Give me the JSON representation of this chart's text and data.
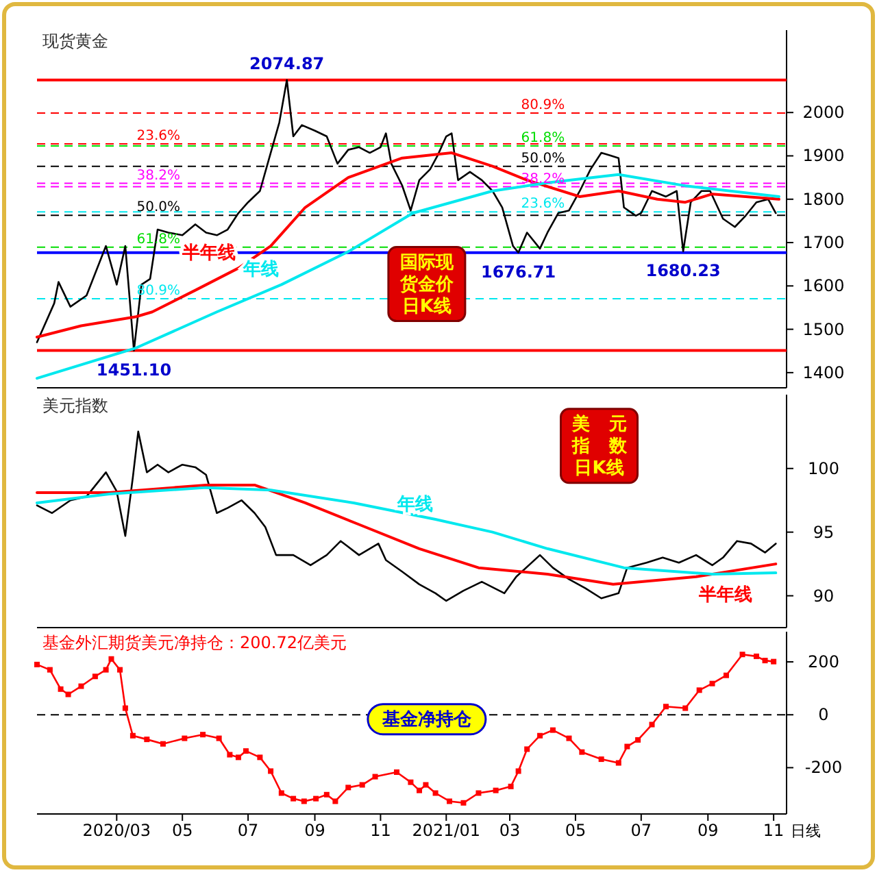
{
  "chart_data": [
    {
      "type": "line",
      "title": "现货黄金",
      "xlim": [
        "2019-12-18",
        "2021-11-13"
      ],
      "ylim": [
        1365,
        2190
      ],
      "yticks": [
        1400,
        1500,
        1600,
        1700,
        1800,
        1900,
        2000
      ],
      "tick_labels": "y",
      "series": [
        {
          "color": "#000000",
          "x": [
            "2019-12-18",
            "2020-01-03",
            "2020-01-07",
            "2020-01-18",
            "2020-02-02",
            "2020-02-20",
            "2020-03-01",
            "2020-03-09",
            "2020-03-17",
            "2020-03-24",
            "2020-04-01",
            "2020-04-08",
            "2020-04-18",
            "2020-05-01",
            "2020-05-13",
            "2020-05-23",
            "2020-06-02",
            "2020-06-12",
            "2020-06-22",
            "2020-07-01",
            "2020-07-12",
            "2020-07-22",
            "2020-07-30",
            "2020-08-06",
            "2020-08-12",
            "2020-08-20",
            "2020-09-01",
            "2020-09-12",
            "2020-09-22",
            "2020-10-02",
            "2020-10-12",
            "2020-10-22",
            "2020-11-01",
            "2020-11-06",
            "2020-11-11",
            "2020-11-21",
            "2020-11-29",
            "2020-12-07",
            "2020-12-17",
            "2020-12-24",
            "2021-01-01",
            "2021-01-06",
            "2021-01-12",
            "2021-01-23",
            "2021-02-03",
            "2021-02-13",
            "2021-02-22",
            "2021-03-04",
            "2021-03-09",
            "2021-03-17",
            "2021-03-29",
            "2021-04-05",
            "2021-04-15",
            "2021-04-25",
            "2021-05-05",
            "2021-05-15",
            "2021-05-25",
            "2021-06-02",
            "2021-06-10",
            "2021-06-15",
            "2021-06-26",
            "2021-07-01",
            "2021-07-11",
            "2021-07-24",
            "2021-08-03",
            "2021-08-09",
            "2021-08-16",
            "2021-08-26",
            "2021-09-03",
            "2021-09-15",
            "2021-09-26",
            "2021-10-06",
            "2021-10-16",
            "2021-10-27",
            "2021-11-03"
          ],
          "values": [
            1470,
            1560,
            1609,
            1552,
            1578,
            1692,
            1603,
            1692,
            1451,
            1603,
            1616,
            1730,
            1723,
            1717,
            1742,
            1723,
            1717,
            1730,
            1768,
            1793,
            1819,
            1907,
            1977,
            2075,
            1945,
            1971,
            1958,
            1945,
            1882,
            1914,
            1920,
            1907,
            1920,
            1952,
            1882,
            1832,
            1774,
            1844,
            1869,
            1901,
            1945,
            1952,
            1844,
            1863,
            1844,
            1819,
            1781,
            1692,
            1677,
            1723,
            1686,
            1723,
            1768,
            1774,
            1819,
            1869,
            1907,
            1901,
            1895,
            1781,
            1762,
            1768,
            1819,
            1806,
            1819,
            1680,
            1793,
            1819,
            1819,
            1755,
            1736,
            1762,
            1793,
            1800,
            1768
          ]
        },
        {
          "name": "半年线",
          "color": "#ff0000",
          "x": [
            "2019-12-18",
            "2020-01-28",
            "2020-03-19",
            "2020-04-03",
            "2020-05-13",
            "2020-06-22",
            "2020-07-22",
            "2020-08-23",
            "2020-10-02",
            "2020-11-21",
            "2021-01-06",
            "2021-02-13",
            "2021-03-17",
            "2021-05-05",
            "2021-06-10",
            "2021-07-16",
            "2021-08-11",
            "2021-09-05",
            "2021-11-06"
          ],
          "values": [
            1482,
            1508,
            1529,
            1540,
            1590,
            1641,
            1692,
            1781,
            1850,
            1895,
            1907,
            1876,
            1844,
            1806,
            1819,
            1800,
            1793,
            1812,
            1800
          ]
        },
        {
          "name": "年线",
          "color": "#00e8ee",
          "x": [
            "2019-12-18",
            "2020-03-19",
            "2020-06-02",
            "2020-08-01",
            "2020-10-02",
            "2020-12-01",
            "2021-02-13",
            "2021-04-05",
            "2021-06-10",
            "2021-08-11",
            "2021-11-06"
          ],
          "values": [
            1387,
            1457,
            1540,
            1603,
            1679,
            1768,
            1819,
            1838,
            1857,
            1831,
            1806
          ]
        }
      ],
      "ref_lines": [
        {
          "axis": "y",
          "value": 2074.87,
          "color": "#ff0000",
          "line_style": "solid"
        },
        {
          "axis": "y",
          "value": 1451.1,
          "color": "#ff0000",
          "line_style": "solid"
        },
        {
          "axis": "y",
          "value": 1676.71,
          "color": "#0000ff",
          "line_style": "solid"
        },
        {
          "axis": "y",
          "value": 1927.7,
          "color": "#ff0000",
          "line_style": "dashed"
        },
        {
          "axis": "y",
          "value": 1836.6,
          "color": "#ff00ff",
          "line_style": "dashed"
        },
        {
          "axis": "y",
          "value": 1763,
          "color": "#000000",
          "line_style": "dashed"
        },
        {
          "axis": "y",
          "value": 1689.4,
          "color": "#00dd00",
          "line_style": "dashed"
        },
        {
          "axis": "y",
          "value": 1570.3,
          "color": "#00e8ee",
          "line_style": "dashed"
        },
        {
          "axis": "y",
          "value": 1998.8,
          "color": "#ff0000",
          "line_style": "dashed"
        },
        {
          "axis": "y",
          "value": 1922.8,
          "color": "#00dd00",
          "line_style": "dashed"
        },
        {
          "axis": "y",
          "value": 1875.8,
          "color": "#000000",
          "line_style": "dashed"
        },
        {
          "axis": "y",
          "value": 1828.8,
          "color": "#ff00ff",
          "line_style": "dashed"
        },
        {
          "axis": "y",
          "value": 1770.7,
          "color": "#00e8ee",
          "line_style": "dashed"
        }
      ],
      "annotations": [
        "国际现货金价日K线",
        {
          "text": "2074.87",
          "x": "2020-08-06",
          "y": 2074.87
        },
        {
          "text": "1451.10",
          "x": "2020-03-17",
          "y": 1451.1
        },
        {
          "text": "1676.71",
          "x": "2021-03-09",
          "y": 1676.71
        },
        {
          "text": "1680.23",
          "x": "2021-08-09",
          "y": 1680.23
        },
        {
          "text": "23.6%",
          "x": "2020-03-17",
          "y": 1927.7
        },
        {
          "text": "38.2%",
          "x": "2020-03-17",
          "y": 1836.6
        },
        {
          "text": "50.0%",
          "x": "2020-03-17",
          "y": 1763
        },
        {
          "text": "61.8%",
          "x": "2020-03-17",
          "y": 1689.4
        },
        {
          "text": "80.9%",
          "x": "2020-03-17",
          "y": 1570.3
        },
        {
          "text": "80.9%",
          "x": "2021-03-09",
          "y": 1998.8
        },
        {
          "text": "61.8%",
          "x": "2021-03-09",
          "y": 1922.8
        },
        {
          "text": "50.0%",
          "x": "2021-03-09",
          "y": 1875.8
        },
        {
          "text": "38.2%",
          "x": "2021-03-09",
          "y": 1828.8
        },
        {
          "text": "23.6%",
          "x": "2021-03-09",
          "y": 1770.7
        }
      ]
    },
    {
      "type": "line",
      "title": "美元指数",
      "xlim": [
        "2019-12-18",
        "2021-11-13"
      ],
      "ylim": [
        87.5,
        105.8
      ],
      "yticks": [
        90,
        95,
        100
      ],
      "tick_labels": "y",
      "series": [
        {
          "color": "#000000",
          "x": [
            "2019-12-18",
            "2020-01-01",
            "2020-01-18",
            "2020-02-02",
            "2020-02-20",
            "2020-03-01",
            "2020-03-09",
            "2020-03-16",
            "2020-03-21",
            "2020-03-29",
            "2020-04-08",
            "2020-04-18",
            "2020-05-01",
            "2020-05-13",
            "2020-05-23",
            "2020-06-02",
            "2020-06-12",
            "2020-06-25",
            "2020-07-07",
            "2020-07-17",
            "2020-07-27",
            "2020-08-12",
            "2020-08-28",
            "2020-09-12",
            "2020-09-25",
            "2020-10-12",
            "2020-10-30",
            "2020-11-06",
            "2020-11-21",
            "2020-12-07",
            "2020-12-22",
            "2021-01-01",
            "2021-01-17",
            "2021-02-03",
            "2021-02-24",
            "2021-03-07",
            "2021-03-29",
            "2021-04-10",
            "2021-04-25",
            "2021-05-10",
            "2021-05-25",
            "2021-06-10",
            "2021-06-18",
            "2021-07-06",
            "2021-07-21",
            "2021-08-05",
            "2021-08-21",
            "2021-09-05",
            "2021-09-15",
            "2021-09-28",
            "2021-10-11",
            "2021-10-24",
            "2021-11-03"
          ],
          "values": [
            97.1,
            96.5,
            97.5,
            97.8,
            99.7,
            98.2,
            94.7,
            99.3,
            102.9,
            99.7,
            100.3,
            99.7,
            100.3,
            100.1,
            99.5,
            96.5,
            96.9,
            97.5,
            96.5,
            95.4,
            93.2,
            93.2,
            92.4,
            93.2,
            94.3,
            93.2,
            94.1,
            92.8,
            91.9,
            90.9,
            90.2,
            89.6,
            90.4,
            91.1,
            90.2,
            91.5,
            93.2,
            92.2,
            91.3,
            90.6,
            89.8,
            90.2,
            92.2,
            92.6,
            93.0,
            92.6,
            93.2,
            92.4,
            93.0,
            94.3,
            94.1,
            93.4,
            94.1
          ]
        },
        {
          "name": "半年线",
          "color": "#ff0000",
          "x": [
            "2019-12-18",
            "2020-02-23",
            "2020-05-23",
            "2020-07-07",
            "2020-08-23",
            "2020-10-12",
            "2020-12-07",
            "2021-01-31",
            "2021-04-05",
            "2021-06-05",
            "2021-08-21",
            "2021-11-03"
          ],
          "values": [
            98.1,
            98.1,
            98.7,
            98.7,
            97.3,
            95.6,
            93.7,
            92.2,
            91.7,
            90.9,
            91.5,
            92.5
          ]
        },
        {
          "name": "年线",
          "color": "#00e8ee",
          "x": [
            "2019-12-18",
            "2020-02-23",
            "2020-05-23",
            "2020-07-22",
            "2020-10-07",
            "2020-12-22",
            "2021-02-13",
            "2021-04-05",
            "2021-06-15",
            "2021-09-05",
            "2021-11-03"
          ],
          "values": [
            97.3,
            98.0,
            98.5,
            98.3,
            97.3,
            96.0,
            95.0,
            93.7,
            92.2,
            91.7,
            91.8
          ]
        }
      ],
      "annotations": [
        "美元指数日K线"
      ]
    },
    {
      "type": "line",
      "title": "基金外汇期货美元净持仓：200.72亿美元",
      "xlim": [
        "2019-12-18",
        "2021-11-13"
      ],
      "xticks": [
        {
          "value": "2020-03-01",
          "label": "2020/03"
        },
        {
          "value": "2020-05-01",
          "label": "05"
        },
        {
          "value": "2020-07-01",
          "label": "07"
        },
        {
          "value": "2020-09-01",
          "label": "09"
        },
        {
          "value": "2020-11-01",
          "label": "11"
        },
        {
          "value": "2021-01-01",
          "label": "2021/01"
        },
        {
          "value": "2021-03-01",
          "label": "03"
        },
        {
          "value": "2021-05-01",
          "label": "05"
        },
        {
          "value": "2021-07-01",
          "label": "07"
        },
        {
          "value": "2021-09-01",
          "label": "09"
        },
        {
          "value": "2021-11-01",
          "label": "11"
        }
      ],
      "ylim": [
        -375,
        314
      ],
      "yticks": [
        -200,
        0,
        200
      ],
      "marker": "square",
      "series": [
        {
          "color": "#ff0000",
          "x": [
            "2019-12-18",
            "2019-12-30",
            "2020-01-09",
            "2020-01-16",
            "2020-01-28",
            "2020-02-10",
            "2020-02-20",
            "2020-02-25",
            "2020-03-04",
            "2020-03-09",
            "2020-03-16",
            "2020-03-29",
            "2020-04-13",
            "2020-05-03",
            "2020-05-20",
            "2020-06-04",
            "2020-06-14",
            "2020-06-22",
            "2020-06-29",
            "2020-07-12",
            "2020-07-22",
            "2020-08-01",
            "2020-08-12",
            "2020-08-22",
            "2020-09-02",
            "2020-09-12",
            "2020-09-20",
            "2020-10-02",
            "2020-10-15",
            "2020-10-27",
            "2020-11-16",
            "2020-11-29",
            "2020-12-07",
            "2020-12-13",
            "2020-12-22",
            "2021-01-04",
            "2021-01-17",
            "2021-01-31",
            "2021-02-16",
            "2021-03-02",
            "2021-03-09",
            "2021-03-17",
            "2021-03-29",
            "2021-04-10",
            "2021-04-25",
            "2021-05-07",
            "2021-05-25",
            "2021-06-10",
            "2021-06-18",
            "2021-06-28",
            "2021-07-11",
            "2021-07-24",
            "2021-08-11",
            "2021-08-24",
            "2021-09-05",
            "2021-09-18",
            "2021-10-03",
            "2021-10-16",
            "2021-10-24",
            "2021-11-01"
          ],
          "values": [
            190,
            170,
            97,
            77,
            108,
            145,
            170,
            211,
            170,
            25,
            -79,
            -93,
            -110,
            -89,
            -75,
            -89,
            -151,
            -161,
            -137,
            -161,
            -213,
            -296,
            -317,
            -327,
            -317,
            -302,
            -327,
            -275,
            -265,
            -234,
            -217,
            -255,
            -286,
            -265,
            -296,
            -327,
            -333,
            -296,
            -286,
            -271,
            -213,
            -130,
            -79,
            -58,
            -89,
            -141,
            -168,
            -182,
            -120,
            -95,
            -37,
            31,
            25,
            93,
            118,
            149,
            228,
            221,
            205,
            201
          ]
        }
      ],
      "ref_lines": [
        {
          "axis": "y",
          "value": 0,
          "color": "#000000",
          "line_style": "dashed"
        }
      ],
      "annotations": [
        "基金净持仓",
        "日线"
      ]
    }
  ]
}
